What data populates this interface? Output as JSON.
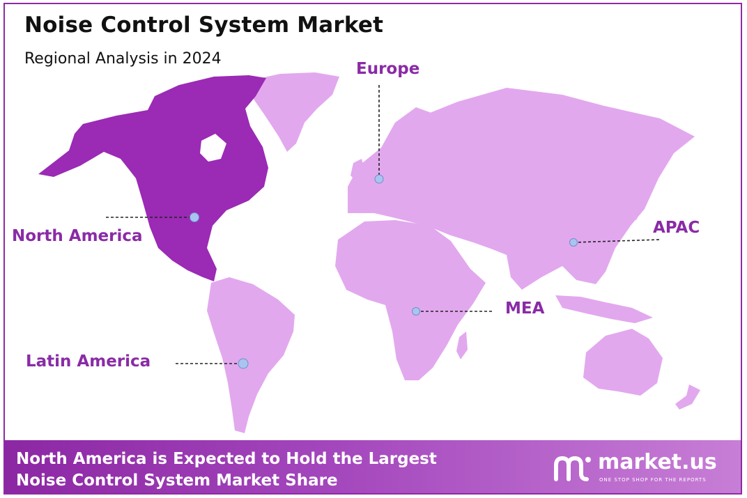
{
  "header": {
    "title": "Noise Control System Market",
    "subtitle": "Regional Analysis in 2024"
  },
  "regions": [
    {
      "id": "north-america",
      "label": "North America",
      "highlighted": true
    },
    {
      "id": "europe",
      "label": "Europe",
      "highlighted": false
    },
    {
      "id": "apac",
      "label": "APAC",
      "highlighted": false
    },
    {
      "id": "mea",
      "label": "MEA",
      "highlighted": false
    },
    {
      "id": "latin-america",
      "label": "Latin America",
      "highlighted": false
    }
  ],
  "colors": {
    "highlight": "#9b2ab5",
    "land": "#e2a8ee",
    "label": "#8a2ba6",
    "marker": "#a9c4ef",
    "frame": "#8e2aa5"
  },
  "footer": {
    "line1": "North America is Expected to Hold the Largest",
    "line2": "Noise Control System Market Share",
    "brand_name": "market.us",
    "brand_tagline": "ONE STOP SHOP FOR THE REPORTS",
    "brand_icon": "market-us-logo-icon"
  }
}
